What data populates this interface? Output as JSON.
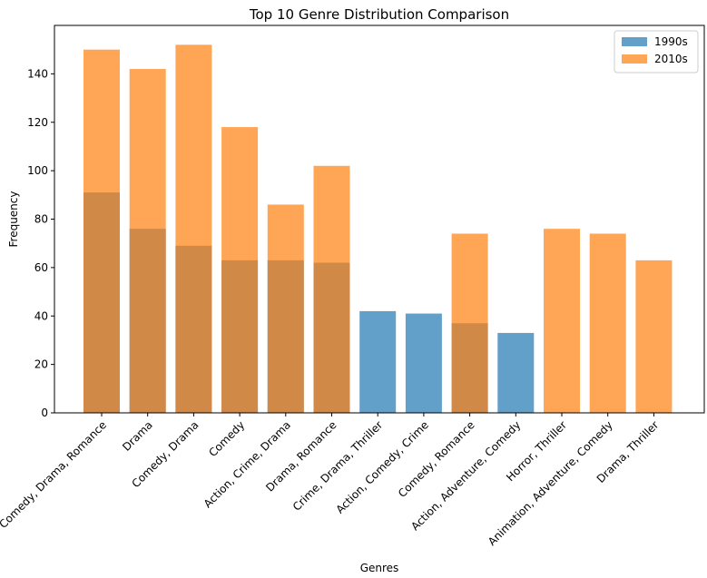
{
  "chart_data": {
    "type": "bar",
    "title": "Top 10 Genre Distribution Comparison",
    "xlabel": "Genres",
    "ylabel": "Frequency",
    "ylim": [
      0,
      160
    ],
    "yticks": [
      0,
      20,
      40,
      60,
      80,
      100,
      120,
      140
    ],
    "categories": [
      "Comedy, Drama, Romance",
      "Drama",
      "Comedy, Drama",
      "Comedy",
      "Action, Crime, Drama",
      "Drama, Romance",
      "Crime, Drama, Thriller",
      "Action, Comedy, Crime",
      "Comedy, Romance",
      "Action, Adventure, Comedy",
      "Horror, Thriller",
      "Animation, Adventure, Comedy",
      "Drama, Thriller"
    ],
    "series": [
      {
        "name": "1990s",
        "color": "#1f77b4",
        "values": [
          91,
          76,
          69,
          63,
          63,
          62,
          42,
          41,
          37,
          33,
          null,
          null,
          null
        ]
      },
      {
        "name": "2010s",
        "color": "#ff7f0e",
        "values": [
          150,
          142,
          152,
          118,
          86,
          102,
          null,
          null,
          74,
          null,
          76,
          74,
          63
        ]
      }
    ],
    "bar_alpha": 0.7,
    "grid": false,
    "legend_position": "top-right",
    "xtick_rotation": 45
  }
}
